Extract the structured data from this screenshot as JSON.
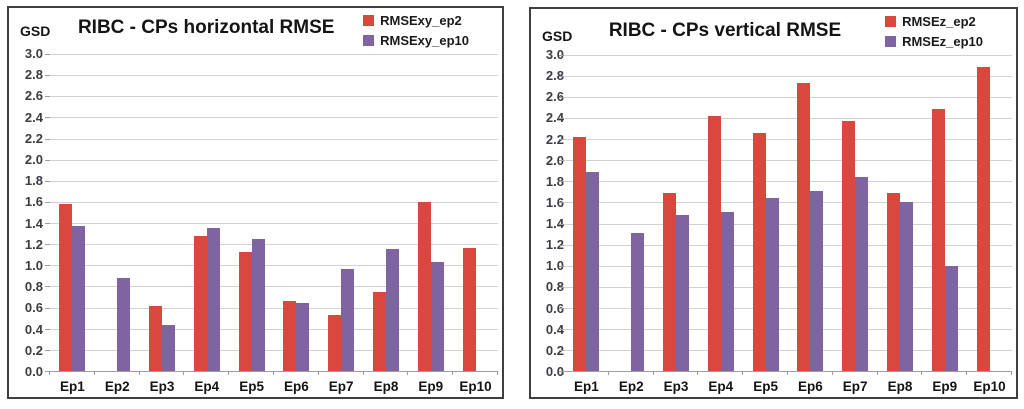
{
  "colors": {
    "series_ep2": "#d9473f",
    "series_ep10": "#8064a2",
    "gridline": "#d2d2d2",
    "axis_line": "#9e9e9e",
    "panel_border": "#3f3f3f",
    "text": "#141414"
  },
  "chart_data": [
    {
      "type": "bar",
      "title": "RIBC - CPs horizontal RMSE",
      "ylabel": "GSD",
      "xlabel": "",
      "ylim": [
        0.0,
        3.0
      ],
      "ytick_step": 0.2,
      "yticks": [
        "3.0",
        "2.8",
        "2.6",
        "2.4",
        "2.2",
        "2.0",
        "1.8",
        "1.6",
        "1.4",
        "1.2",
        "1.0",
        "0.8",
        "0.6",
        "0.4",
        "0.2",
        "0.0"
      ],
      "categories": [
        "Ep1",
        "Ep2",
        "Ep3",
        "Ep4",
        "Ep5",
        "Ep6",
        "Ep7",
        "Ep8",
        "Ep9",
        "Ep10"
      ],
      "series": [
        {
          "name": "RMSExy_ep2",
          "color": "#d9473f",
          "values": [
            1.58,
            0,
            0.62,
            1.28,
            1.13,
            0.66,
            0.53,
            0.75,
            1.6,
            1.16
          ]
        },
        {
          "name": "RMSExy_ep10",
          "color": "#8064a2",
          "values": [
            1.37,
            0.88,
            0.44,
            1.35,
            1.25,
            0.64,
            0.97,
            1.15,
            1.03,
            0
          ]
        }
      ],
      "legend_position": "top-right",
      "grid": true
    },
    {
      "type": "bar",
      "title": "RIBC - CPs vertical RMSE",
      "ylabel": "GSD",
      "xlabel": "",
      "ylim": [
        0.0,
        3.0
      ],
      "ytick_step": 0.2,
      "yticks": [
        "3.0",
        "2.8",
        "2.6",
        "2.4",
        "2.2",
        "2.0",
        "1.8",
        "1.6",
        "1.4",
        "1.2",
        "1.0",
        "0.8",
        "0.6",
        "0.4",
        "0.2",
        "0.0"
      ],
      "categories": [
        "Ep1",
        "Ep2",
        "Ep3",
        "Ep4",
        "Ep5",
        "Ep6",
        "Ep7",
        "Ep8",
        "Ep9",
        "Ep10"
      ],
      "series": [
        {
          "name": "RMSEz_ep2",
          "color": "#d9473f",
          "values": [
            2.22,
            0,
            1.69,
            2.42,
            2.26,
            2.73,
            2.37,
            1.69,
            2.49,
            2.89
          ]
        },
        {
          "name": "RMSEz_ep10",
          "color": "#8064a2",
          "values": [
            1.89,
            1.31,
            1.48,
            1.51,
            1.64,
            1.71,
            1.84,
            1.6,
            1.0,
            0
          ]
        }
      ],
      "legend_position": "top-right",
      "grid": true
    }
  ]
}
